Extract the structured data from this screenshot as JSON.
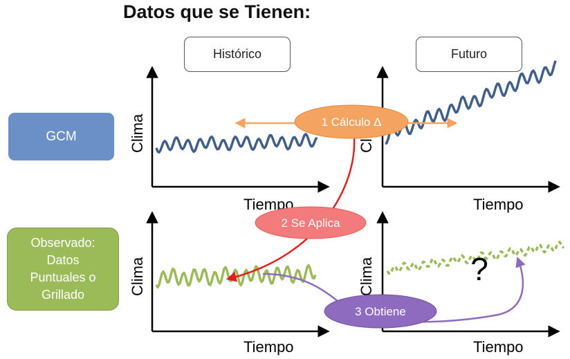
{
  "title": "Datos que se Tienen:",
  "headers": {
    "historico": "Histórico",
    "futuro": "Futuro"
  },
  "rows": {
    "gcm": "GCM",
    "observado": [
      "Observado:",
      "Datos",
      "Puntuales o",
      "Grillado"
    ]
  },
  "axes": {
    "x": "Tiempo",
    "y": "Clima"
  },
  "steps": {
    "calculo": "1 Cálculo Δ",
    "aplica": "2 Se Aplica",
    "obtiene": "3 Obtiene"
  },
  "unknown_mark": "?",
  "colors": {
    "gcm_box": "#6b8fc7",
    "observado_box": "#9bbb59",
    "gcm_series": "#3f5e88",
    "obs_series": "#9bbb59",
    "calculo": "#f4a460",
    "aplica": "#f47b7b",
    "obtiene": "#8e6bbf",
    "arrow_red": "#e01e1e"
  }
}
